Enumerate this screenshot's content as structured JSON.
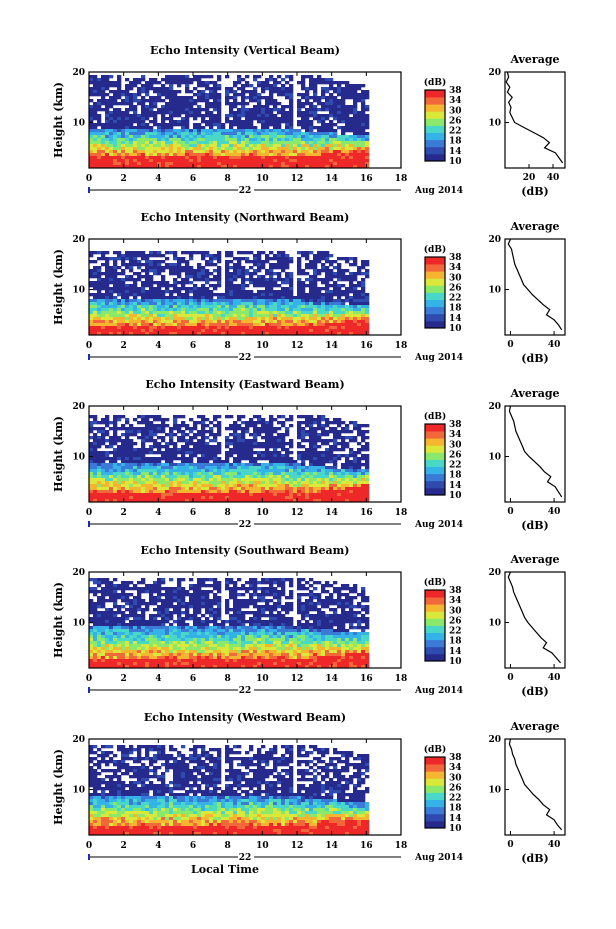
{
  "chart_data": [
    {
      "type": "heatmap",
      "title": "Echo Intensity (Vertical Beam)",
      "ylabel": "Height (km)",
      "xticks": [
        "0",
        "2",
        "4",
        "6",
        "8",
        "10",
        "12",
        "14",
        "16",
        "18"
      ],
      "yticks": [
        "20",
        "10"
      ],
      "date_label": "22",
      "month_label": "Aug 2014",
      "xlim": [
        0,
        18
      ],
      "ylim": [
        1,
        20
      ],
      "data_extent_hours": [
        0,
        16
      ],
      "colorbar": {
        "unit": "(dB)",
        "ticks": [
          "10",
          "14",
          "18",
          "22",
          "26",
          "30",
          "34",
          "38"
        ],
        "range": [
          10,
          38
        ]
      },
      "echo_layers_km": {
        "strong_top": 3.5,
        "mid_top": 9.0,
        "weak_top": 19.5
      },
      "average_profile": {
        "title": "Average",
        "xlabel": "(dB)",
        "xticks": [
          "20",
          "40"
        ],
        "xlim": [
          0,
          50
        ],
        "height_km": [
          20,
          19,
          18,
          17,
          16,
          15,
          14,
          13,
          12,
          11,
          10,
          9,
          8,
          7,
          6,
          5,
          4,
          3,
          2
        ],
        "db": [
          2,
          3,
          1,
          4,
          2,
          6,
          3,
          5,
          4,
          6,
          8,
          16,
          24,
          32,
          37,
          33,
          42,
          45,
          48
        ]
      }
    },
    {
      "type": "heatmap",
      "title": "Echo Intensity (Northward Beam)",
      "ylabel": "Height (km)",
      "xticks": [
        "0",
        "2",
        "4",
        "6",
        "8",
        "10",
        "12",
        "14",
        "16",
        "18"
      ],
      "yticks": [
        "20",
        "10"
      ],
      "date_label": "22",
      "month_label": "Aug 2014",
      "xlim": [
        0,
        18
      ],
      "ylim": [
        1,
        20
      ],
      "data_extent_hours": [
        0,
        16
      ],
      "colorbar": {
        "unit": "(dB)",
        "ticks": [
          "10",
          "14",
          "18",
          "22",
          "26",
          "30",
          "34",
          "38"
        ],
        "range": [
          10,
          38
        ]
      },
      "echo_layers_km": {
        "strong_top": 3.0,
        "mid_top": 8.5,
        "weak_top": 18.0
      },
      "average_profile": {
        "title": "Average",
        "xlabel": "(dB)",
        "xticks": [
          "0",
          "40"
        ],
        "xlim": [
          -5,
          50
        ],
        "height_km": [
          20,
          19,
          18,
          17,
          16,
          15,
          14,
          13,
          12,
          11,
          10,
          9,
          8,
          7,
          6,
          5,
          4,
          3,
          2
        ],
        "db": [
          0,
          -2,
          1,
          2,
          3,
          4,
          6,
          8,
          10,
          12,
          16,
          20,
          25,
          30,
          36,
          33,
          40,
          44,
          47
        ]
      }
    },
    {
      "type": "heatmap",
      "title": "Echo Intensity (Eastward Beam)",
      "ylabel": "Height (km)",
      "xticks": [
        "0",
        "2",
        "4",
        "6",
        "8",
        "10",
        "12",
        "14",
        "16",
        "18"
      ],
      "yticks": [
        "20",
        "10"
      ],
      "date_label": "22",
      "month_label": "Aug 2014",
      "xlim": [
        0,
        18
      ],
      "ylim": [
        1,
        20
      ],
      "data_extent_hours": [
        0,
        16
      ],
      "colorbar": {
        "unit": "(dB)",
        "ticks": [
          "10",
          "14",
          "18",
          "22",
          "26",
          "30",
          "34",
          "38"
        ],
        "range": [
          10,
          38
        ]
      },
      "echo_layers_km": {
        "strong_top": 3.0,
        "mid_top": 9.0,
        "weak_top": 18.5
      },
      "average_profile": {
        "title": "Average",
        "xlabel": "(dB)",
        "xticks": [
          "0",
          "40"
        ],
        "xlim": [
          -5,
          50
        ],
        "height_km": [
          20,
          19,
          18,
          17,
          16,
          15,
          14,
          13,
          12,
          11,
          10,
          9,
          8,
          7,
          6,
          5,
          4,
          3,
          2
        ],
        "db": [
          0,
          -1,
          1,
          3,
          4,
          5,
          7,
          9,
          11,
          13,
          17,
          22,
          27,
          31,
          37,
          34,
          41,
          44,
          47
        ]
      }
    },
    {
      "type": "heatmap",
      "title": "Echo Intensity (Southward Beam)",
      "ylabel": "Height (km)",
      "xticks": [
        "0",
        "2",
        "4",
        "6",
        "8",
        "10",
        "12",
        "14",
        "16",
        "18"
      ],
      "yticks": [
        "20",
        "10"
      ],
      "date_label": "22",
      "month_label": "Aug 2014",
      "xlim": [
        0,
        18
      ],
      "ylim": [
        1,
        20
      ],
      "data_extent_hours": [
        0,
        16
      ],
      "colorbar": {
        "unit": "(dB)",
        "ticks": [
          "10",
          "14",
          "18",
          "22",
          "26",
          "30",
          "34",
          "38"
        ],
        "range": [
          10,
          38
        ]
      },
      "echo_layers_km": {
        "strong_top": 3.0,
        "mid_top": 9.5,
        "weak_top": 19.0
      },
      "average_profile": {
        "title": "Average",
        "xlabel": "(dB)",
        "xticks": [
          "0",
          "40"
        ],
        "xlim": [
          -5,
          50
        ],
        "height_km": [
          20,
          19,
          18,
          17,
          16,
          15,
          14,
          13,
          12,
          11,
          10,
          9,
          8,
          7,
          6,
          5,
          4,
          3,
          2
        ],
        "db": [
          0,
          -2,
          0,
          2,
          3,
          5,
          7,
          9,
          11,
          13,
          16,
          20,
          24,
          28,
          33,
          30,
          38,
          42,
          46
        ]
      }
    },
    {
      "type": "heatmap",
      "title": "Echo Intensity (Westward Beam)",
      "ylabel": "Height (km)",
      "xlabel": "Local Time",
      "xticks": [
        "0",
        "2",
        "4",
        "6",
        "8",
        "10",
        "12",
        "14",
        "16",
        "18"
      ],
      "yticks": [
        "20",
        "10"
      ],
      "date_label": "22",
      "month_label": "Aug 2014",
      "xlim": [
        0,
        18
      ],
      "ylim": [
        1,
        20
      ],
      "data_extent_hours": [
        0,
        16
      ],
      "colorbar": {
        "unit": "(dB)",
        "ticks": [
          "10",
          "14",
          "18",
          "22",
          "26",
          "30",
          "34",
          "38"
        ],
        "range": [
          10,
          38
        ]
      },
      "echo_layers_km": {
        "strong_top": 3.0,
        "mid_top": 9.0,
        "weak_top": 19.0
      },
      "average_profile": {
        "title": "Average",
        "xlabel": "(dB)",
        "xticks": [
          "0",
          "40"
        ],
        "xlim": [
          -5,
          50
        ],
        "height_km": [
          20,
          19,
          18,
          17,
          16,
          15,
          14,
          13,
          12,
          11,
          10,
          9,
          8,
          7,
          6,
          5,
          4,
          3,
          2
        ],
        "db": [
          0,
          -1,
          1,
          2,
          4,
          5,
          7,
          9,
          11,
          13,
          17,
          21,
          26,
          30,
          36,
          33,
          40,
          43,
          47
        ]
      }
    }
  ],
  "colors": {
    "scale": [
      "#262a8c",
      "#2f4bb0",
      "#3b7bd8",
      "#35b3e8",
      "#49d8c8",
      "#8ae86a",
      "#d9e83a",
      "#f5b531",
      "#f3683a",
      "#ee2828"
    ],
    "background": "#ffffff",
    "gap": "#ffffff"
  }
}
